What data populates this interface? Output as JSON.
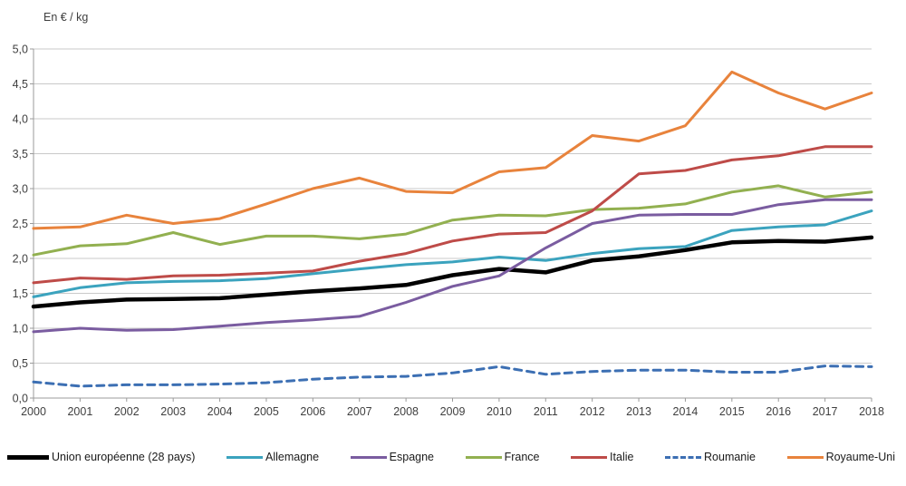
{
  "chart_data": {
    "type": "line",
    "title": "En € / kg",
    "x": [
      2000,
      2001,
      2002,
      2003,
      2004,
      2005,
      2006,
      2007,
      2008,
      2009,
      2010,
      2011,
      2012,
      2013,
      2014,
      2015,
      2016,
      2017,
      2018
    ],
    "ylim": [
      0,
      5
    ],
    "y_tick_step": 0.5,
    "y_tick_labels": [
      "0,0",
      "0,5",
      "1,0",
      "1,5",
      "2,0",
      "2,5",
      "3,0",
      "3,5",
      "4,0",
      "4,5",
      "5,0"
    ],
    "grid": true,
    "legend_position": "bottom",
    "axis_color": "#9b9b9b",
    "grid_color": "#c9c9c9",
    "text_color": "#3f3f3f",
    "series": [
      {
        "name": "Union européenne (28 pays)",
        "color": "#000000",
        "width": 4.5,
        "dash": null,
        "values": [
          1.31,
          1.37,
          1.41,
          1.42,
          1.43,
          1.48,
          1.53,
          1.57,
          1.62,
          1.76,
          1.85,
          1.8,
          1.97,
          2.03,
          2.12,
          2.23,
          2.25,
          2.24,
          2.3
        ]
      },
      {
        "name": "Allemagne",
        "color": "#3ba3be",
        "width": 3,
        "dash": null,
        "values": [
          1.45,
          1.58,
          1.65,
          1.67,
          1.68,
          1.71,
          1.78,
          1.85,
          1.91,
          1.95,
          2.02,
          1.97,
          2.07,
          2.14,
          2.17,
          2.4,
          2.45,
          2.48,
          2.68
        ]
      },
      {
        "name": "Espagne",
        "color": "#7a5ca0",
        "width": 3,
        "dash": null,
        "values": [
          0.95,
          1.0,
          0.97,
          0.98,
          1.03,
          1.08,
          1.12,
          1.17,
          1.37,
          1.6,
          1.75,
          2.15,
          2.5,
          2.62,
          2.63,
          2.63,
          2.77,
          2.84,
          2.84
        ]
      },
      {
        "name": "France",
        "color": "#92b050",
        "width": 3,
        "dash": null,
        "values": [
          2.05,
          2.18,
          2.21,
          2.37,
          2.2,
          2.32,
          2.32,
          2.28,
          2.35,
          2.55,
          2.62,
          2.61,
          2.7,
          2.72,
          2.78,
          2.95,
          3.04,
          2.88,
          2.95
        ]
      },
      {
        "name": "Italie",
        "color": "#be4b48",
        "width": 3,
        "dash": null,
        "values": [
          1.65,
          1.72,
          1.7,
          1.75,
          1.76,
          1.79,
          1.82,
          1.96,
          2.07,
          2.25,
          2.35,
          2.37,
          2.68,
          3.21,
          3.26,
          3.41,
          3.47,
          3.6,
          3.6
        ]
      },
      {
        "name": "Roumanie",
        "color": "#3c6fb3",
        "width": 3,
        "dash": "8,6",
        "values": [
          0.23,
          0.17,
          0.19,
          0.19,
          0.2,
          0.22,
          0.27,
          0.3,
          0.31,
          0.36,
          0.45,
          0.34,
          0.38,
          0.4,
          0.4,
          0.37,
          0.37,
          0.46,
          0.45
        ]
      },
      {
        "name": "Royaume-Uni",
        "color": "#e8833c",
        "width": 3,
        "dash": null,
        "values": [
          2.43,
          2.45,
          2.62,
          2.5,
          2.57,
          2.78,
          3.0,
          3.15,
          2.96,
          2.94,
          3.24,
          3.3,
          3.76,
          3.68,
          3.9,
          4.67,
          4.37,
          4.14,
          4.37
        ]
      }
    ]
  }
}
